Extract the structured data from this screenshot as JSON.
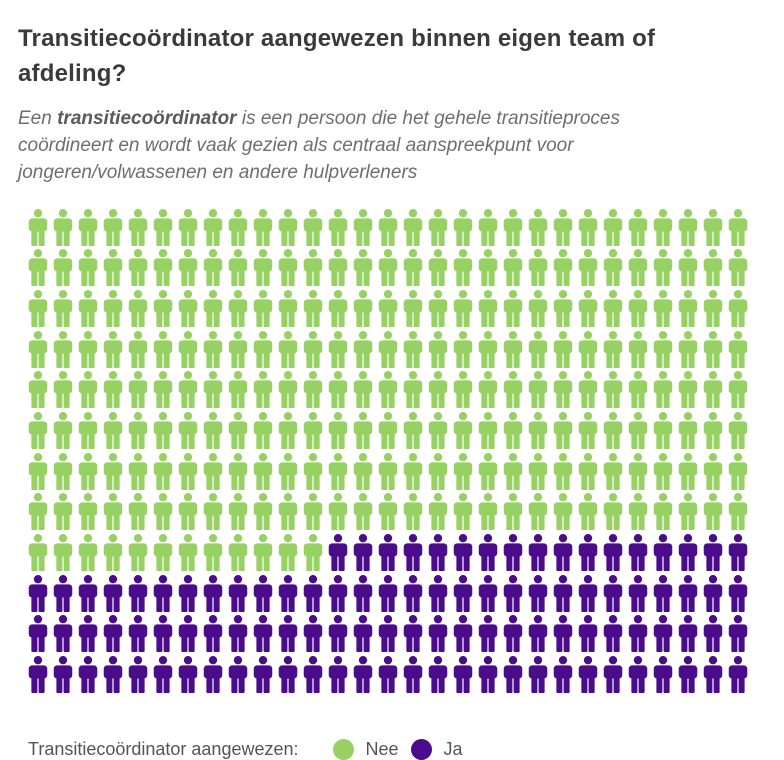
{
  "header": {
    "title": "Transitiecoördinator aangewezen binnen eigen team of afdeling?",
    "subtitle_prefix": "Een ",
    "subtitle_bold": "transitiecoördinator",
    "subtitle_rest": " is een persoon die het gehele transitieproces coördineert en wordt vaak gezien als centraal aanspreekpunt voor jongeren/volwassenen en andere hulpverleners"
  },
  "chart_data": {
    "type": "pictogram-waffle",
    "title": "Transitiecoördinator aangewezen binnen eigen team of afdeling?",
    "rows": 12,
    "columns": 29,
    "total_icons": 348,
    "fill_order": "row-major",
    "icon": "person-icon",
    "series": [
      {
        "name": "Nee",
        "count": 244,
        "color": "#97d164"
      },
      {
        "name": "Ja",
        "count": 104,
        "color": "#4a0c8a"
      }
    ],
    "legend_label": "Transitiecoördinator aangewezen:",
    "legend_position": "bottom-left"
  },
  "colors": {
    "background": "#ffffff",
    "title_text": "#3a3a3c",
    "subtitle_text": "#6e6e71",
    "legend_text": "#545457",
    "nee_green": "#97d164",
    "ja_purple": "#4a0c8a"
  }
}
